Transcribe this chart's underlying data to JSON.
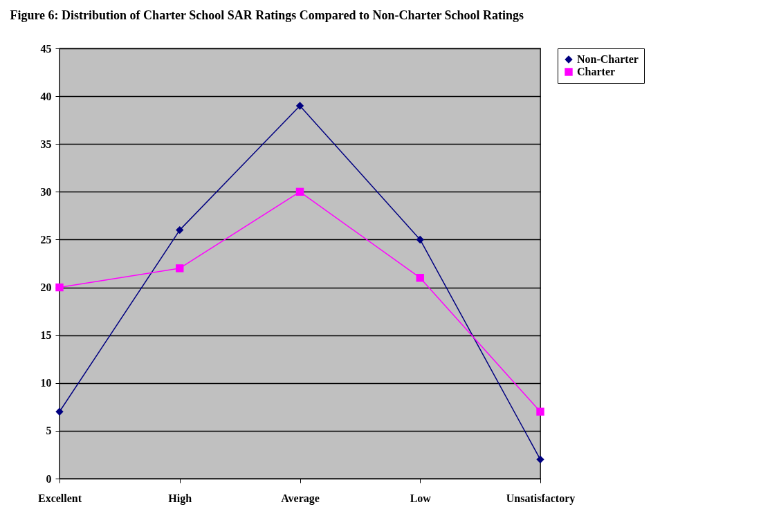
{
  "chart_data": {
    "type": "line",
    "title": "Figure 6:  Distribution of Charter School SAR Ratings Compared to Non-Charter School Ratings",
    "categories": [
      "Excellent",
      "High",
      "Average",
      "Low",
      "Unsatisfactory"
    ],
    "series": [
      {
        "name": "Non-Charter",
        "color": "#000080",
        "marker": "diamond",
        "values": [
          7,
          26,
          39,
          25,
          2
        ]
      },
      {
        "name": "Charter",
        "color": "#ff00ff",
        "marker": "square",
        "values": [
          20,
          22,
          30,
          21,
          7
        ]
      }
    ],
    "ylim": [
      0,
      45
    ],
    "yticks": [
      0,
      5,
      10,
      15,
      20,
      25,
      30,
      35,
      40,
      45
    ],
    "grid": "y",
    "legend": "right"
  }
}
